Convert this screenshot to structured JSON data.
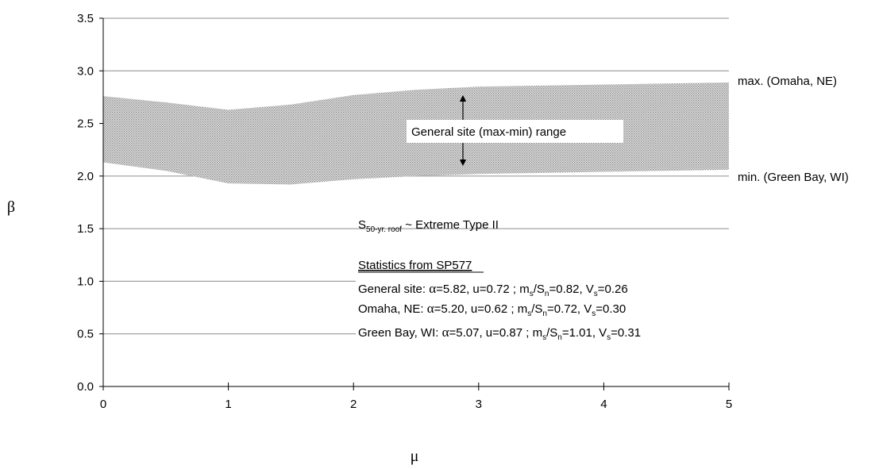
{
  "chart_data": {
    "type": "area",
    "xlabel": "μ",
    "ylabel": "β",
    "xlim": [
      0,
      5
    ],
    "ylim": [
      0.0,
      3.5
    ],
    "x_ticks": [
      "0",
      "1",
      "2",
      "3",
      "4",
      "5"
    ],
    "y_ticks": [
      "0.0",
      "0.5",
      "1.0",
      "1.5",
      "2.0",
      "2.5",
      "3.0",
      "3.5"
    ],
    "grid": true,
    "band": {
      "label": "General site (max-min) range",
      "x": [
        0,
        0.5,
        1.0,
        1.5,
        2.0,
        2.5,
        3.0,
        3.5,
        4.0,
        4.5,
        5.0
      ],
      "upper": [
        2.76,
        2.7,
        2.63,
        2.68,
        2.77,
        2.82,
        2.85,
        2.86,
        2.87,
        2.88,
        2.89
      ],
      "lower": [
        2.13,
        2.05,
        1.93,
        1.92,
        1.97,
        2.0,
        2.02,
        2.03,
        2.04,
        2.05,
        2.06
      ]
    },
    "series": [
      {
        "name": "max. (Omaha, NE)"
      },
      {
        "name": "min. (Green Bay, WI)"
      }
    ],
    "annotations": {
      "range_label": "General site (max-min) range",
      "dist_S": "S",
      "dist_sub": "50-yr. roof",
      "dist_rest": " ~ Extreme Type II",
      "stats_title": "Statistics from SP577",
      "stats": [
        {
          "site": "General site: ",
          "alpha": "5.82",
          "u": "0.72",
          "ratio": "0.82",
          "V": "0.26"
        },
        {
          "site": "Omaha, NE: ",
          "alpha": "5.20",
          "u": "0.62",
          "ratio": "0.72",
          "V": "0.30"
        },
        {
          "site": "Green Bay, WI: ",
          "alpha": "5.07",
          "u": "0.87",
          "ratio": "1.01",
          "V": "0.31"
        }
      ]
    },
    "colors": {
      "band": "#bdbdbd",
      "grid": "#8c8c8c",
      "axis": "#000000"
    }
  }
}
